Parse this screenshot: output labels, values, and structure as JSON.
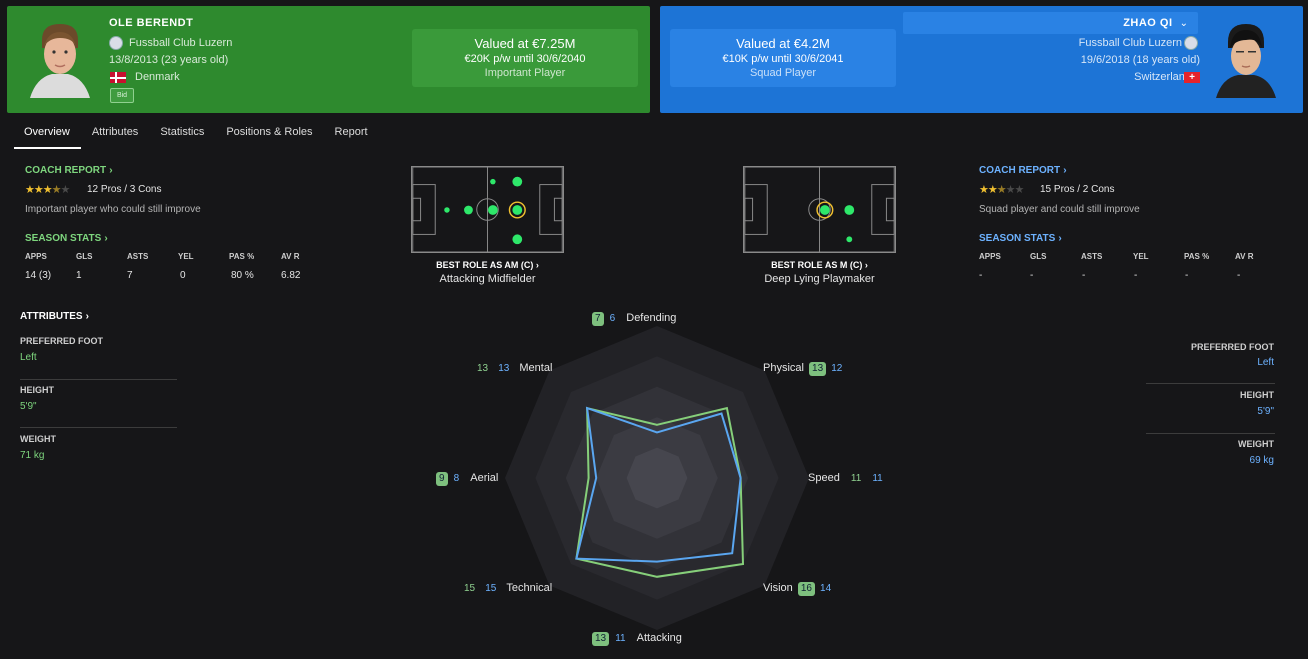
{
  "left_player": {
    "name": "OLE BERENDT",
    "club": "Fussball Club Luzern",
    "dob": "13/8/2013 (23 years old)",
    "nationality": "Denmark",
    "badge": "Bid",
    "value": "Valued at €7.25M",
    "contract": "€20K p/w until 30/6/2040",
    "status": "Important Player",
    "color": "#2e8a2e"
  },
  "right_player": {
    "name": "ZHAO QI",
    "club": "Fussball Club Luzern",
    "dob": "19/6/2018 (18 years old)",
    "nationality": "Switzerland",
    "value": "Valued at €4.2M",
    "contract": "€10K p/w until 30/6/2041",
    "status": "Squad Player",
    "color": "#1d74d6"
  },
  "tabs": [
    "Overview",
    "Attributes",
    "Statistics",
    "Positions & Roles",
    "Report"
  ],
  "left_panel": {
    "coach_report": "COACH REPORT",
    "stars": 3.5,
    "pros_cons": "12 Pros / 3 Cons",
    "summary": "Important player who could still improve",
    "season_stats": "SEASON STATS",
    "stat_headers": [
      "APPS",
      "GLS",
      "ASTS",
      "YEL",
      "PAS %",
      "AV R"
    ],
    "stat_values": [
      "14 (3)",
      "1",
      "7",
      "0",
      "80 %",
      "6.82"
    ],
    "attributes": "ATTRIBUTES",
    "foot_label": "PREFERRED FOOT",
    "foot": "Left",
    "height_label": "HEIGHT",
    "height": "5'9\"",
    "weight_label": "WEIGHT",
    "weight": "71 kg"
  },
  "right_panel": {
    "coach_report": "COACH REPORT",
    "stars": 2.5,
    "pros_cons": "15 Pros / 2 Cons",
    "summary": "Squad player and could still improve",
    "season_stats": "SEASON STATS",
    "stat_headers": [
      "APPS",
      "GLS",
      "ASTS",
      "YEL",
      "PAS %",
      "AV R"
    ],
    "stat_values": [
      "-",
      "-",
      "-",
      "-",
      "-",
      "-"
    ],
    "foot_label": "PREFERRED FOOT",
    "foot": "Left",
    "height_label": "HEIGHT",
    "height": "5'9\"",
    "weight_label": "WEIGHT",
    "weight": "69 kg"
  },
  "roles": {
    "left": {
      "title": "BEST ROLE AS AM (C)",
      "name": "Attacking Midfielder"
    },
    "right": {
      "title": "BEST ROLE AS M (C)",
      "name": "Deep Lying Playmaker"
    }
  },
  "radar": {
    "labels": [
      "Defending",
      "Physical",
      "Speed",
      "Vision",
      "Attacking",
      "Technical",
      "Aerial",
      "Mental"
    ],
    "left": [
      7,
      13,
      11,
      16,
      13,
      15,
      9,
      13
    ],
    "right": [
      6,
      12,
      11,
      14,
      11,
      15,
      8,
      13
    ],
    "left_color": "#86cf7a",
    "right_color": "#5aa6f0"
  }
}
